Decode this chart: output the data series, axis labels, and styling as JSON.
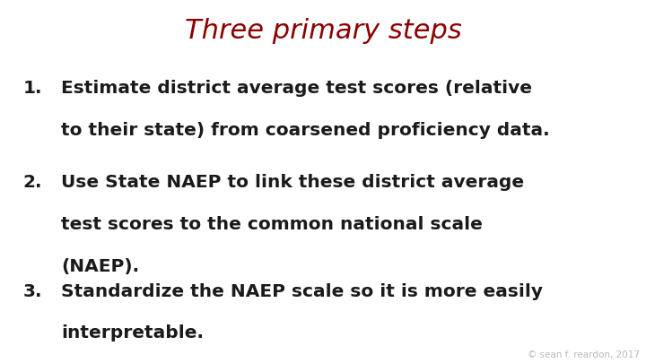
{
  "title": "Three primary steps",
  "title_color": "#8B0000",
  "title_fontsize": 22,
  "background_color": "#ffffff",
  "items": [
    {
      "number": "1.",
      "lines": [
        "Estimate district average test scores (relative",
        "to their state) from coarsened proficiency data."
      ]
    },
    {
      "number": "2.",
      "lines": [
        "Use State NAEP to link these district average",
        "test scores to the common national scale",
        "(NAEP)."
      ]
    },
    {
      "number": "3.",
      "lines": [
        "Standardize the NAEP scale so it is more easily",
        "interpretable."
      ]
    }
  ],
  "item_fontsize": 14.5,
  "item_color": "#1a1a1a",
  "footnote": "© sean f. reardon, 2017",
  "footnote_color": "#bbbbbb",
  "footnote_fontsize": 7.5
}
